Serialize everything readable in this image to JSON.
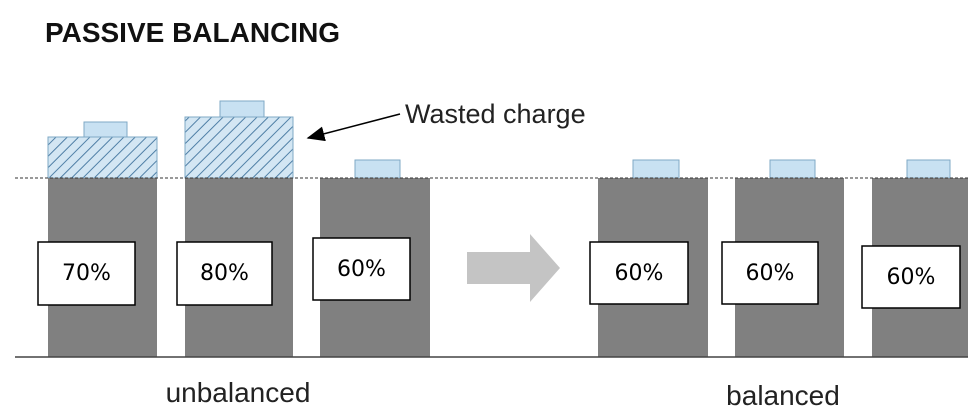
{
  "title": "PASSIVE BALANCING",
  "annotation": "Wasted charge",
  "groups": [
    {
      "label": "unbalanced",
      "cells": [
        "70%",
        "80%",
        "60%"
      ]
    },
    {
      "label": "balanced",
      "cells": [
        "60%",
        "60%",
        "60%"
      ]
    }
  ]
}
